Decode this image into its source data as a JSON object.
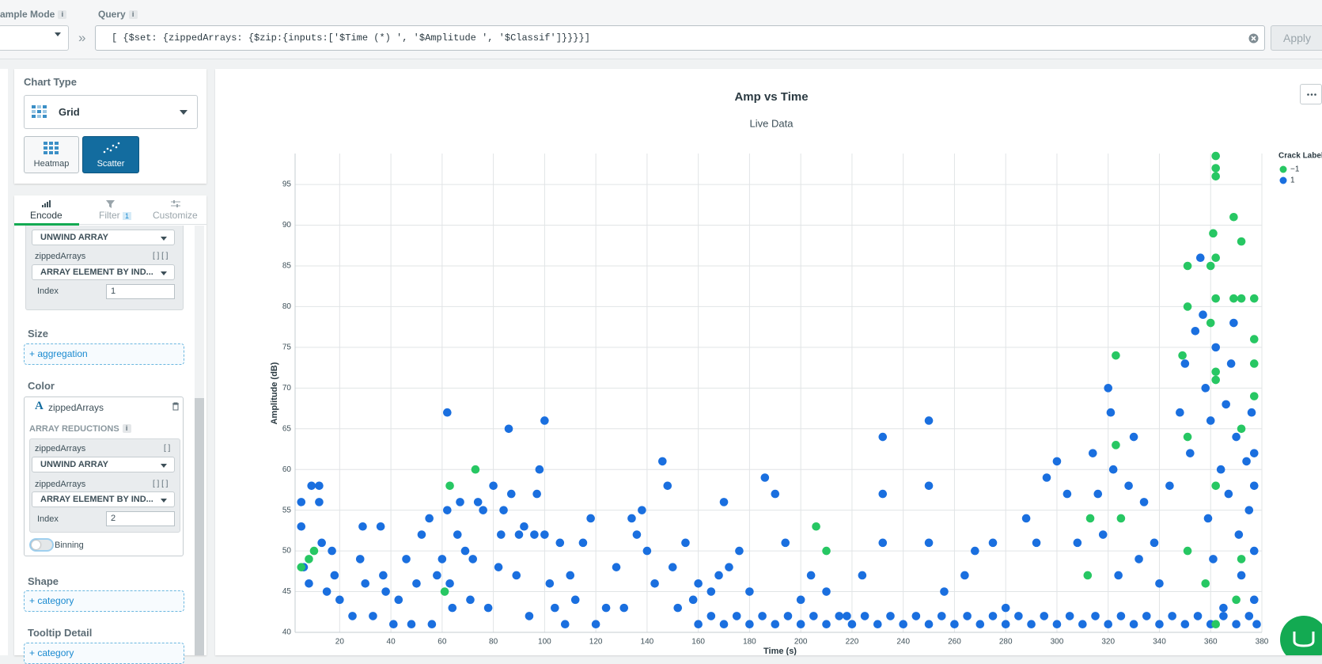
{
  "toolbar": {
    "sample_mode_label": "ample Mode",
    "query_label": "Query",
    "info": "i",
    "separator": "»",
    "query": "[ {$set: {zippedArrays: {$zip:{inputs:['$Time (*) ', '$Amplitude ', '$Classif']}}}}]",
    "apply": "Apply"
  },
  "sidebar": {
    "chart_type_label": "Chart Type",
    "chart_type": "Grid",
    "subtypes": [
      "Heatmap",
      "Scatter"
    ],
    "tabs": [
      "Encode",
      "Filter",
      "Customize"
    ],
    "filter_count": "1",
    "encode_block_1": {
      "unwind": "UNWIND ARRAY",
      "field": "zippedArrays",
      "element": "ARRAY ELEMENT BY IND...",
      "index_label": "Index",
      "index": "1"
    },
    "size_label": "Size",
    "size_add": "+ aggregation",
    "color_label": "Color",
    "color_field": "zippedArrays",
    "array_reductions": "ARRAY REDUCTIONS",
    "color_block": {
      "field_1": "zippedArrays",
      "unwind": "UNWIND ARRAY",
      "field_2": "zippedArrays",
      "element": "ARRAY ELEMENT BY IND...",
      "index_label": "Index",
      "index": "2"
    },
    "binning": "Binning",
    "shape_label": "Shape",
    "shape_add": "+ category",
    "tooltip_label": "Tooltip Detail",
    "tooltip_add": "+ category"
  },
  "chart_data": {
    "type": "scatter",
    "title": "Amp vs Time",
    "subtitle": "Live Data",
    "x_label": "Time (s)",
    "y_label": "Amplitude (dB)",
    "legend_title": "Crack Label",
    "legend_position": "right",
    "grid": true,
    "xlim": [
      2.6,
      380
    ],
    "ylim": [
      40,
      98.8
    ],
    "xticks": [
      20,
      40,
      60,
      80,
      100,
      120,
      140,
      160,
      180,
      200,
      220,
      240,
      260,
      280,
      300,
      320,
      340,
      360,
      380
    ],
    "yticks": [
      40,
      45,
      50,
      55,
      60,
      65,
      70,
      75,
      80,
      85,
      90,
      95
    ],
    "series": [
      {
        "name": "−1",
        "color": "#27c763",
        "x": [
          5,
          10,
          8,
          61,
          63,
          73,
          206,
          210,
          313,
          312,
          323,
          323,
          325,
          349,
          351,
          351,
          351,
          351,
          360,
          360,
          361,
          362,
          362,
          362,
          362,
          362,
          362,
          362,
          362,
          358,
          369,
          372,
          369,
          372,
          377,
          377,
          377,
          377,
          372,
          372,
          362,
          370
        ],
        "values": [
          48,
          50,
          49,
          45,
          58,
          60,
          53,
          50,
          54,
          47,
          74,
          63,
          54,
          74,
          85,
          80,
          64,
          50,
          78,
          85,
          89,
          98.5,
          97,
          96,
          86,
          81,
          72,
          71,
          58,
          46,
          91,
          88,
          81,
          81,
          81,
          76,
          73,
          69,
          65,
          49,
          41,
          44
        ]
      },
      {
        "name": "1",
        "color": "#1a6fdf",
        "x": [
          5,
          5,
          6,
          8,
          9,
          12,
          12,
          13,
          15,
          17,
          18,
          20,
          25,
          28,
          29,
          30,
          33,
          36,
          37,
          38,
          41,
          43,
          46,
          48,
          50,
          52,
          55,
          56,
          58,
          60,
          62,
          62,
          63,
          64,
          66,
          67,
          69,
          71,
          72,
          74,
          76,
          78,
          80,
          82,
          83,
          84,
          86,
          87,
          89,
          90,
          92,
          94,
          96,
          97,
          98,
          100,
          100,
          102,
          104,
          106,
          108,
          110,
          112,
          115,
          118,
          120,
          124,
          128,
          131,
          134,
          136,
          138,
          140,
          143,
          146,
          148,
          150,
          152,
          155,
          158,
          160,
          165,
          168,
          170,
          172,
          176,
          180,
          186,
          190,
          194,
          200,
          204,
          210,
          218,
          224,
          232,
          232,
          232,
          250,
          250,
          250,
          256,
          264,
          268,
          275,
          280,
          288,
          292,
          296,
          300,
          304,
          308,
          314,
          316,
          318,
          320,
          321,
          322,
          324,
          328,
          330,
          332,
          334,
          338,
          340,
          344,
          348,
          350,
          352,
          354,
          356,
          357,
          358,
          359,
          360,
          361,
          362,
          364,
          365,
          366,
          367,
          368,
          369,
          370,
          371,
          372,
          374,
          375,
          376,
          377,
          377,
          377,
          377,
          378,
          160,
          165,
          170,
          175,
          180,
          185,
          190,
          195,
          200,
          205,
          210,
          215,
          220,
          225,
          230,
          235,
          240,
          245,
          250,
          255,
          260,
          265,
          270,
          275,
          280,
          285,
          290,
          295,
          300,
          305,
          310,
          315,
          320,
          325,
          330,
          335,
          340,
          345,
          350,
          355,
          360,
          365,
          370,
          375
        ],
        "values": [
          56,
          53,
          48,
          46,
          58,
          58,
          56,
          51,
          45,
          50,
          47,
          44,
          42,
          49,
          53,
          46,
          42,
          53,
          47,
          45,
          41,
          44,
          49,
          41,
          46,
          52,
          54,
          41,
          47,
          49,
          67,
          55,
          46,
          43,
          52,
          56,
          50,
          44,
          49,
          56,
          55,
          43,
          58,
          48,
          52,
          55,
          65,
          57,
          47,
          52,
          53,
          42,
          52,
          57,
          60,
          66,
          52,
          46,
          43,
          51,
          41,
          47,
          44,
          51,
          54,
          41,
          43,
          48,
          43,
          54,
          52,
          55,
          50,
          46,
          61,
          58,
          48,
          43,
          51,
          44,
          46,
          45,
          47,
          56,
          48,
          50,
          45,
          59,
          57,
          51,
          44,
          47,
          45,
          42,
          47,
          64,
          57,
          51,
          66,
          58,
          51,
          45,
          47,
          50,
          51,
          43,
          54,
          51,
          59,
          61,
          57,
          51,
          62,
          57,
          52,
          70,
          67,
          60,
          47,
          58,
          64,
          49,
          56,
          51,
          46,
          58,
          67,
          73,
          62,
          77,
          86,
          79,
          70,
          54,
          66,
          49,
          75,
          60,
          43,
          68,
          57,
          73,
          78,
          64,
          52,
          47,
          61,
          55,
          67,
          58,
          50,
          44,
          62,
          41,
          41,
          42,
          41,
          42,
          41,
          42,
          41,
          42,
          41,
          42,
          41,
          42,
          41,
          42,
          41,
          42,
          41,
          42,
          41,
          42,
          41,
          42,
          41,
          42,
          41,
          42,
          41,
          42,
          41,
          42,
          41,
          42,
          41,
          42,
          41,
          42,
          41,
          42,
          41,
          42,
          41,
          42,
          41,
          42
        ]
      }
    ]
  }
}
